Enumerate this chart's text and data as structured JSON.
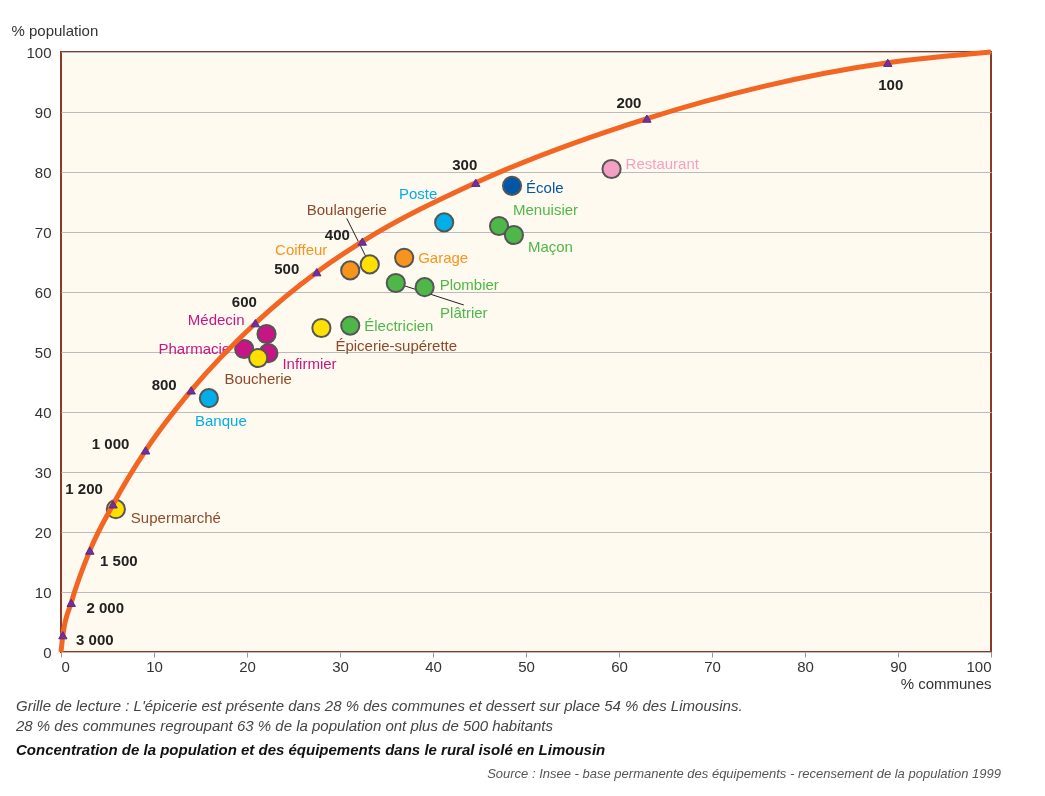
{
  "chart_data": {
    "type": "scatter",
    "title": "Concentration de la population et des équipements dans le rural isolé en Limousin",
    "xlabel": "% communes",
    "ylabel": "% population",
    "xlim": [
      0,
      100
    ],
    "ylim": [
      0,
      100
    ],
    "xticks": [
      0,
      10,
      20,
      30,
      40,
      50,
      60,
      70,
      80,
      90,
      100
    ],
    "yticks": [
      0,
      10,
      20,
      30,
      40,
      50,
      60,
      70,
      80,
      90,
      100
    ],
    "grid": "y",
    "annotations": [
      "Grille de lecture : L'épicerie est présente dans 28 % des communes et dessert sur place 54 % des Limousins.",
      "28 % des communes regroupant 63 % de la population ont plus de 500 habitants",
      "Source : Insee - base permanente des équipements - recensement de la population 1999",
      {
        "text": "100",
        "x": 88.9,
        "y": 98.2
      },
      {
        "text": "200",
        "x": 63.0,
        "y": 88.9
      },
      {
        "text": "300",
        "x": 44.6,
        "y": 78.2
      },
      {
        "text": "400",
        "x": 32.4,
        "y": 68.4
      },
      {
        "text": "500",
        "x": 27.5,
        "y": 63.3
      },
      {
        "text": "600",
        "x": 20.9,
        "y": 54.8
      },
      {
        "text": "800",
        "x": 14.0,
        "y": 43.6
      },
      {
        "text": "1 000",
        "x": 9.1,
        "y": 33.6
      },
      {
        "text": "1 200",
        "x": 5.6,
        "y": 24.6
      },
      {
        "text": "1 500",
        "x": 3.1,
        "y": 16.9
      },
      {
        "text": "2 000",
        "x": 1.1,
        "y": 8.2
      },
      {
        "text": "3 000",
        "x": 0.2,
        "y": 2.8
      }
    ],
    "series": [
      {
        "type": "line",
        "color": "#f26522",
        "marker": "none",
        "x": [
          0,
          0.2,
          1.1,
          3.1,
          5.6,
          9.1,
          14.0,
          20.9,
          27.5,
          32.4,
          44.6,
          63.0,
          88.9,
          100
        ],
        "values": [
          0,
          2.8,
          8.2,
          16.9,
          24.6,
          33.6,
          43.6,
          54.8,
          63.3,
          68.4,
          78.2,
          88.9,
          98.2,
          100
        ]
      },
      {
        "color": "#7030a0",
        "marker": "triangle",
        "x": [
          88.9,
          63.0,
          44.6,
          32.4,
          27.5,
          20.9,
          14.0,
          9.1,
          5.6,
          3.1,
          1.1,
          0.2
        ],
        "values": [
          98.2,
          88.9,
          78.2,
          68.4,
          63.3,
          54.8,
          43.6,
          33.6,
          24.6,
          16.9,
          8.2,
          2.8
        ]
      },
      {
        "marker": "circle",
        "name": "École",
        "color": "#0057a8",
        "x": [
          48.5
        ],
        "values": [
          77.7
        ]
      },
      {
        "marker": "circle",
        "name": "Restaurant",
        "color": "#f4a0c4",
        "x": [
          59.2
        ],
        "values": [
          80.5
        ]
      },
      {
        "marker": "circle",
        "name": "Poste",
        "color": "#00aee8",
        "x": [
          41.2
        ],
        "values": [
          71.6
        ]
      },
      {
        "marker": "circle",
        "name": "Menuisier",
        "color": "#4db848",
        "x": [
          47.1
        ],
        "values": [
          71.0
        ]
      },
      {
        "marker": "circle",
        "name": "Maçon",
        "color": "#4db848",
        "x": [
          48.7
        ],
        "values": [
          69.5
        ]
      },
      {
        "marker": "circle",
        "name": "Boulangerie",
        "color": "#ffe000",
        "x": [
          33.2
        ],
        "values": [
          64.6
        ]
      },
      {
        "marker": "circle",
        "name": "Coiffeur",
        "color": "#f7941d",
        "x": [
          31.1
        ],
        "values": [
          63.6
        ]
      },
      {
        "marker": "circle",
        "name": "Garage",
        "color": "#f7941d",
        "x": [
          36.9
        ],
        "values": [
          65.7
        ]
      },
      {
        "marker": "circle",
        "name": "Plâtrier",
        "color": "#4db848",
        "x": [
          36.0
        ],
        "values": [
          61.5
        ]
      },
      {
        "marker": "circle",
        "name": "Plombier",
        "color": "#4db848",
        "x": [
          39.1
        ],
        "values": [
          60.8
        ]
      },
      {
        "marker": "circle",
        "name": "Épicerie-supérette",
        "color": "#ffe000",
        "x": [
          28
        ],
        "values": [
          54
        ]
      },
      {
        "marker": "circle",
        "name": "Électricien",
        "color": "#4db848",
        "x": [
          31.1
        ],
        "values": [
          54.4
        ]
      },
      {
        "marker": "circle",
        "name": "Médecin",
        "color": "#c71585",
        "x": [
          22.1
        ],
        "values": [
          53.0
        ]
      },
      {
        "marker": "circle",
        "name": "Pharmacie",
        "color": "#c71585",
        "x": [
          19.7
        ],
        "values": [
          50.5
        ]
      },
      {
        "marker": "circle",
        "name": "Infirmier",
        "color": "#c71585",
        "x": [
          22.3
        ],
        "values": [
          49.8
        ]
      },
      {
        "marker": "circle",
        "name": "Boucherie",
        "color": "#ffe000",
        "x": [
          21.2
        ],
        "values": [
          49.0
        ]
      },
      {
        "marker": "circle",
        "name": "Banque",
        "color": "#00aee8",
        "x": [
          15.9
        ],
        "values": [
          42.3
        ]
      },
      {
        "marker": "circle",
        "name": "Supermarché",
        "color": "#ffe000",
        "x": [
          5.9
        ],
        "values": [
          23.8
        ]
      }
    ]
  }
}
